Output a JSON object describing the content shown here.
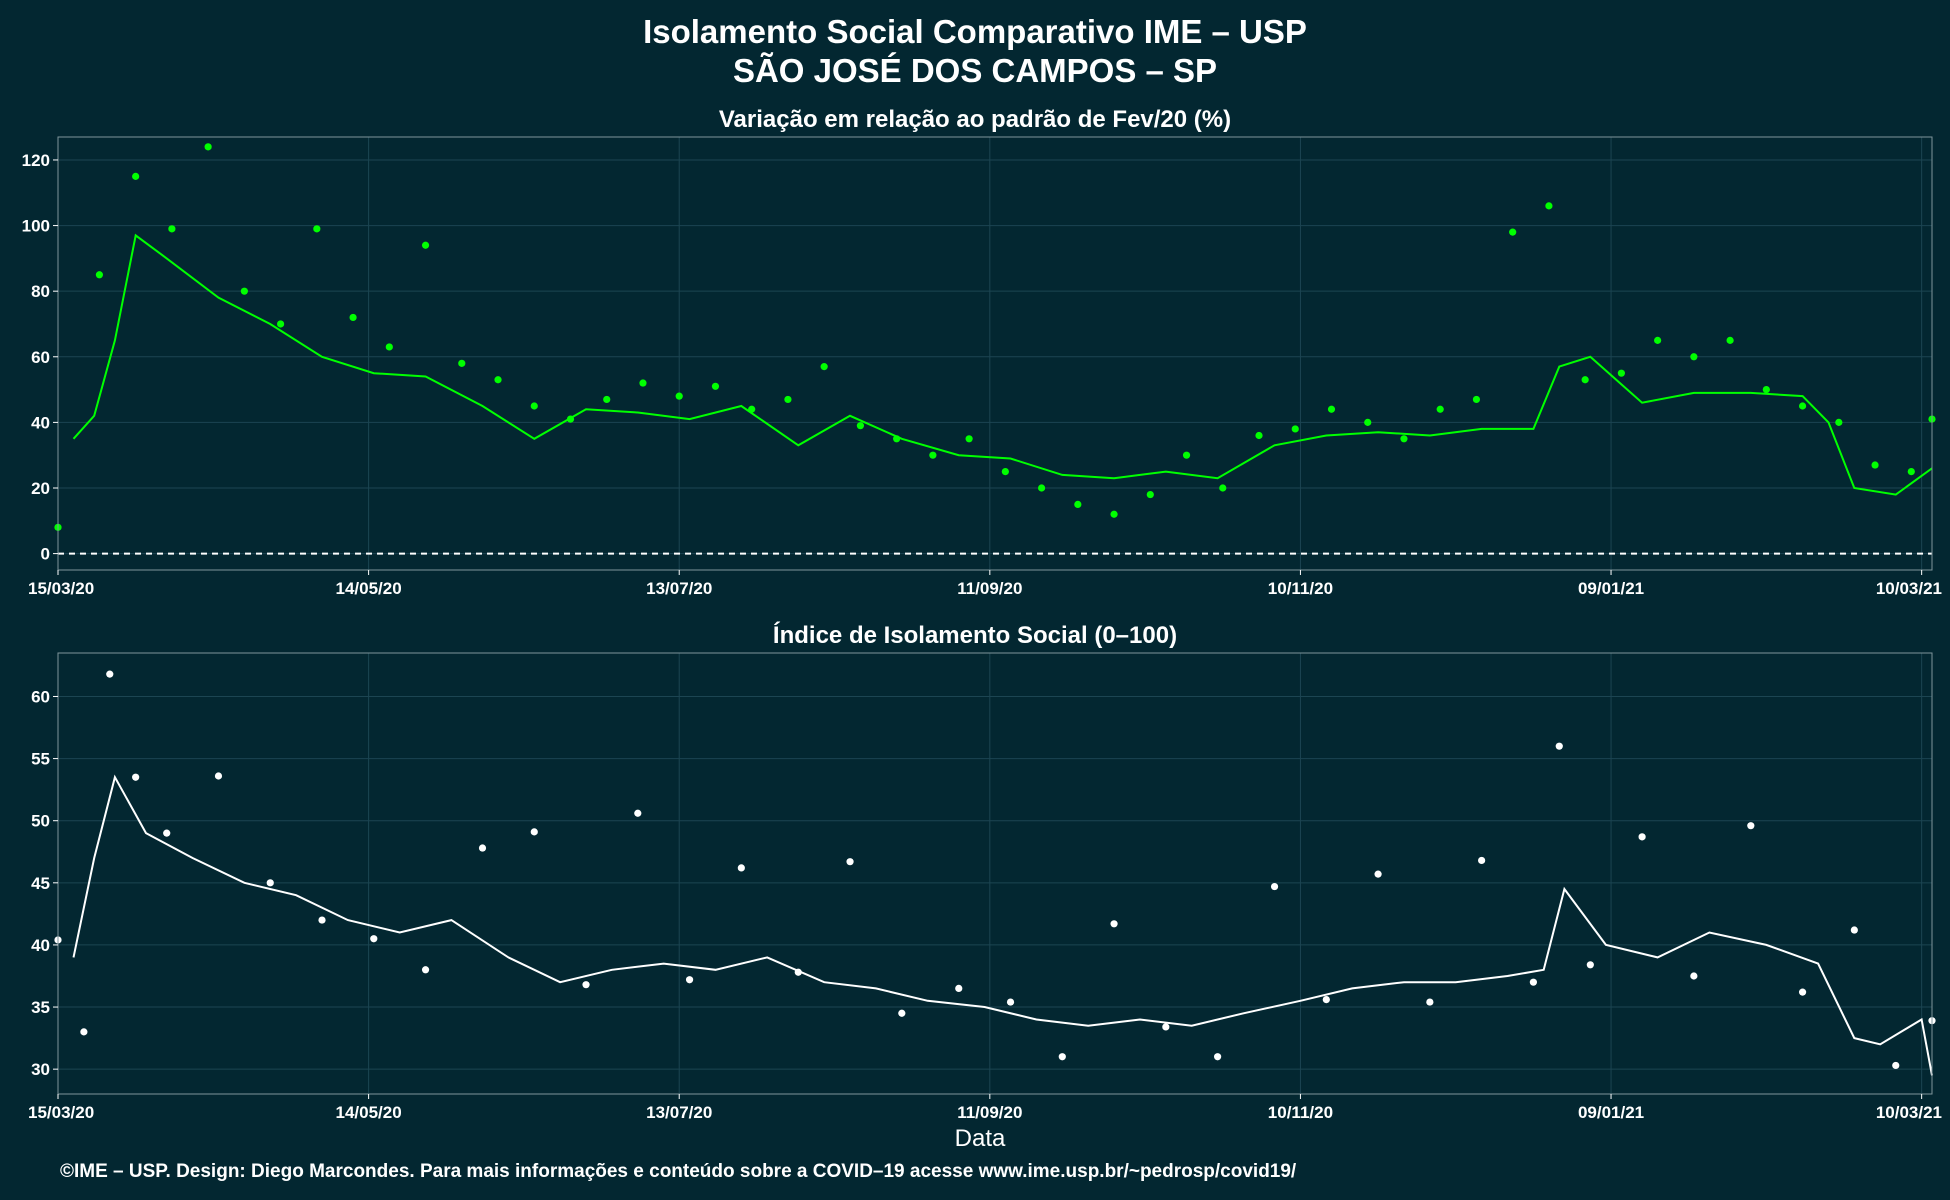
{
  "figure": {
    "title_line1": "Isolamento Social Comparativo IME – USP",
    "title_line2": "SÃO JOSÉ DOS CAMPOS – SP",
    "xlabel": "Data",
    "footer": "©IME – USP. Design: Diego Marcondes. Para mais informações e conteúdo sobre a COVID–19 acesse www.ime.usp.br/~pedrosp/covid19/"
  },
  "colors": {
    "background": "#032731",
    "panel1_series": "#00ff00",
    "panel2_series": "#ffffff",
    "grid": "#1c4552"
  },
  "chart_data": [
    {
      "type": "scatter",
      "title": "Variação em relação ao padrão de Fev/20 (%)",
      "x_tick_labels": [
        "15/03/20",
        "14/05/20",
        "13/07/20",
        "11/09/20",
        "10/11/20",
        "09/01/21",
        "10/03/21"
      ],
      "y_ticks": [
        0,
        20,
        40,
        60,
        80,
        100,
        120
      ],
      "ylim": [
        -5,
        127
      ],
      "xlim": [
        "15/03/20",
        "12/03/21"
      ],
      "reference_line": {
        "y": 0,
        "style": "dashed"
      },
      "grid": true,
      "series": [
        {
          "kind": "points",
          "style": "dots",
          "x": [
            "15/03/20",
            "23/03/20",
            "30/03/20",
            "06/04/20",
            "13/04/20",
            "20/04/20",
            "27/04/20",
            "04/05/20",
            "11/05/20",
            "18/05/20",
            "25/05/20",
            "01/06/20",
            "08/06/20",
            "15/06/20",
            "22/06/20",
            "29/06/20",
            "06/07/20",
            "13/07/20",
            "20/07/20",
            "27/07/20",
            "03/08/20",
            "10/08/20",
            "17/08/20",
            "24/08/20",
            "31/08/20",
            "07/09/20",
            "14/09/20",
            "21/09/20",
            "28/09/20",
            "05/10/20",
            "12/10/20",
            "19/10/20",
            "26/10/20",
            "02/11/20",
            "09/11/20",
            "16/11/20",
            "23/11/20",
            "30/11/20",
            "07/12/20",
            "14/12/20",
            "21/12/20",
            "28/12/20",
            "04/01/21",
            "11/01/21",
            "18/01/21",
            "25/01/21",
            "01/02/21",
            "08/02/21",
            "15/02/21",
            "22/02/21",
            "01/03/21",
            "08/03/21",
            "12/03/21"
          ],
          "values": [
            8,
            85,
            115,
            99,
            124,
            80,
            70,
            99,
            72,
            63,
            94,
            58,
            53,
            45,
            41,
            47,
            52,
            48,
            51,
            44,
            47,
            57,
            39,
            35,
            30,
            35,
            25,
            20,
            15,
            12,
            18,
            30,
            20,
            36,
            38,
            44,
            40,
            35,
            44,
            47,
            98,
            106,
            53,
            55,
            65,
            60,
            65,
            50,
            45,
            40,
            27,
            25,
            41
          ]
        },
        {
          "kind": "moving_average",
          "style": "line",
          "x": [
            "18/03/20",
            "22/03/20",
            "26/03/20",
            "30/03/20",
            "05/04/20",
            "15/04/20",
            "25/04/20",
            "05/05/20",
            "15/05/20",
            "25/05/20",
            "05/06/20",
            "15/06/20",
            "25/06/20",
            "05/07/20",
            "15/07/20",
            "25/07/20",
            "05/08/20",
            "15/08/20",
            "25/08/20",
            "05/09/20",
            "15/09/20",
            "25/09/20",
            "05/10/20",
            "15/10/20",
            "25/10/20",
            "05/11/20",
            "15/11/20",
            "25/11/20",
            "05/12/20",
            "15/12/20",
            "25/12/20",
            "30/12/20",
            "05/01/21",
            "15/01/21",
            "25/01/21",
            "05/02/21",
            "15/02/21",
            "20/02/21",
            "25/02/21",
            "05/03/21",
            "12/03/21"
          ],
          "values": [
            35,
            42,
            65,
            97,
            90,
            78,
            70,
            60,
            55,
            54,
            45,
            35,
            44,
            43,
            41,
            45,
            33,
            42,
            35,
            30,
            29,
            24,
            23,
            25,
            23,
            33,
            36,
            37,
            36,
            38,
            38,
            57,
            60,
            46,
            49,
            49,
            48,
            40,
            20,
            18,
            26
          ]
        }
      ]
    },
    {
      "type": "scatter",
      "title": "Índice de Isolamento Social (0–100)",
      "x_tick_labels": [
        "15/03/20",
        "14/05/20",
        "13/07/20",
        "11/09/20",
        "10/11/20",
        "09/01/21",
        "10/03/21"
      ],
      "y_ticks": [
        30,
        35,
        40,
        45,
        50,
        55,
        60
      ],
      "ylim": [
        28,
        63.5
      ],
      "xlim": [
        "15/03/20",
        "12/03/21"
      ],
      "grid": true,
      "series": [
        {
          "kind": "points",
          "style": "dots",
          "x": [
            "15/03/20",
            "20/03/20",
            "25/03/20",
            "30/03/20",
            "05/04/20",
            "15/04/20",
            "25/04/20",
            "05/05/20",
            "15/05/20",
            "25/05/20",
            "05/06/20",
            "15/06/20",
            "25/06/20",
            "05/07/20",
            "15/07/20",
            "25/07/20",
            "05/08/20",
            "15/08/20",
            "25/08/20",
            "05/09/20",
            "15/09/20",
            "25/09/20",
            "05/10/20",
            "15/10/20",
            "25/10/20",
            "05/11/20",
            "15/11/20",
            "25/11/20",
            "05/12/20",
            "15/12/20",
            "25/12/20",
            "30/12/20",
            "05/01/21",
            "15/01/21",
            "25/01/21",
            "05/02/21",
            "15/02/21",
            "25/02/21",
            "05/03/21",
            "12/03/21"
          ],
          "values": [
            40.4,
            33,
            61.8,
            53.5,
            49,
            53.6,
            45,
            42,
            40.5,
            38,
            47.8,
            49.1,
            36.8,
            50.6,
            37.2,
            46.2,
            37.8,
            46.7,
            34.5,
            36.5,
            35.4,
            31,
            41.7,
            33.4,
            31,
            44.7,
            35.6,
            45.7,
            35.4,
            46.8,
            37,
            56,
            38.4,
            48.7,
            37.5,
            49.6,
            36.2,
            41.2,
            30.3,
            33.9
          ]
        },
        {
          "kind": "moving_average",
          "style": "line",
          "x": [
            "18/03/20",
            "22/03/20",
            "26/03/20",
            "01/04/20",
            "10/04/20",
            "20/04/20",
            "30/04/20",
            "10/05/20",
            "20/05/20",
            "30/05/20",
            "10/06/20",
            "20/06/20",
            "30/06/20",
            "10/07/20",
            "20/07/20",
            "30/07/20",
            "10/08/20",
            "20/08/20",
            "30/08/20",
            "10/09/20",
            "20/09/20",
            "30/09/20",
            "10/10/20",
            "20/10/20",
            "30/10/20",
            "10/11/20",
            "20/11/20",
            "30/11/20",
            "10/12/20",
            "20/12/20",
            "27/12/20",
            "31/12/20",
            "08/01/21",
            "18/01/21",
            "28/01/21",
            "08/02/21",
            "18/02/21",
            "25/02/21",
            "02/03/21",
            "10/03/21",
            "12/03/21"
          ],
          "values": [
            39,
            47,
            53.5,
            49,
            47,
            45,
            44,
            42,
            41,
            42,
            39,
            37,
            38,
            38.5,
            38,
            39,
            37,
            36.5,
            35.5,
            35,
            34,
            33.5,
            34,
            33.5,
            34.5,
            35.5,
            36.5,
            37,
            37,
            37.5,
            38,
            44.5,
            40,
            39,
            41,
            40,
            38.5,
            32.5,
            32,
            34,
            29.5
          ]
        }
      ]
    }
  ]
}
